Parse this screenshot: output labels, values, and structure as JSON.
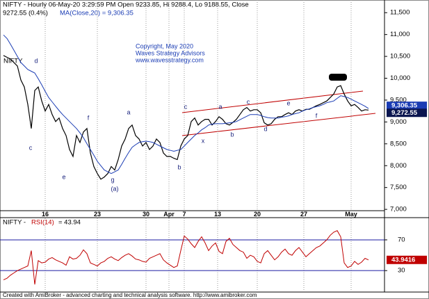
{
  "header": "NIFTY - Hourly 06-May-20 3:29:59 PM Open 9233.85, Hi 9288.4, Lo 9188.55, Close",
  "header_close": "9272.55 (0.4%)",
  "footer": "Created with AmiBroker - advanced charting and technical analysis software. http://www.amibroker.com",
  "chart_data": [
    {
      "type": "line",
      "xlim": [
        -1,
        109.6
      ],
      "xticks": [
        {
          "value": 12,
          "label": "16"
        },
        {
          "value": 27,
          "label": "23"
        },
        {
          "value": 41,
          "label": "30"
        },
        {
          "value": 47.6,
          "label": "Apr"
        },
        {
          "value": 52,
          "label": "7"
        },
        {
          "value": 61.6,
          "label": "13"
        },
        {
          "value": 73,
          "label": "20"
        },
        {
          "value": 86.4,
          "label": "27"
        },
        {
          "value": 100,
          "label": "May"
        }
      ],
      "ylim": [
        6970,
        11790
      ],
      "yticks": [
        {
          "value": 7000,
          "label": "7,000"
        },
        {
          "value": 7500,
          "label": "7,500"
        },
        {
          "value": 8000,
          "label": "8,000"
        },
        {
          "value": 8500,
          "label": "8,500"
        },
        {
          "value": 9000,
          "label": "9,000"
        },
        {
          "value": 9500,
          "label": "9,500"
        },
        {
          "value": 10000,
          "label": "10,000"
        },
        {
          "value": 10500,
          "label": "10,500"
        },
        {
          "value": 11000,
          "label": "11,000"
        },
        {
          "value": 11500,
          "label": "11,500"
        }
      ],
      "grid": true,
      "series": [
        {
          "name": "NIFTY",
          "color": "#000000",
          "values": [
            10520,
            10480,
            10440,
            10360,
            10280,
            9960,
            9800,
            9400,
            8850,
            9720,
            9800,
            9480,
            9250,
            9400,
            9170,
            9010,
            9090,
            8850,
            8690,
            8370,
            8210,
            8690,
            8530,
            8770,
            8850,
            8290,
            7980,
            7820,
            7690,
            7740,
            7820,
            7980,
            7900,
            8140,
            8450,
            8610,
            8850,
            8930,
            8690,
            8610,
            8450,
            8530,
            8370,
            8450,
            8610,
            8530,
            8290,
            8210,
            8210,
            8170,
            8140,
            8450,
            8610,
            8690,
            9010,
            9090,
            8930,
            9010,
            9060,
            9060,
            8930,
            9010,
            9120,
            9060,
            8960,
            8930,
            8990,
            9060,
            9170,
            9280,
            9330,
            9250,
            9280,
            9280,
            9210,
            8980,
            8930,
            8960,
            9060,
            9120,
            9120,
            9170,
            9210,
            9170,
            9250,
            9280,
            9250,
            9290,
            9290,
            9330,
            9370,
            9400,
            9440,
            9480,
            9560,
            9640,
            9800,
            9830,
            9640,
            9480,
            9370,
            9400,
            9330,
            9250,
            9280,
            9272.55
          ]
        },
        {
          "name": "MA(Close,20) = 9,306.35",
          "color": "#1a3cb4",
          "values": [
            10990,
            10910,
            10780,
            10640,
            10500,
            10360,
            10280,
            10200,
            10160,
            10120,
            9990,
            9850,
            9700,
            9560,
            9460,
            9360,
            9260,
            9170,
            9090,
            9010,
            8930,
            8850,
            8750,
            8640,
            8500,
            8370,
            8240,
            8100,
            8000,
            7900,
            7860,
            7820,
            7860,
            7900,
            8030,
            8170,
            8300,
            8420,
            8480,
            8530,
            8550,
            8560,
            8550,
            8530,
            8490,
            8450,
            8410,
            8370,
            8350,
            8330,
            8350,
            8370,
            8450,
            8530,
            8610,
            8690,
            8750,
            8820,
            8870,
            8930,
            8950,
            8960,
            8960,
            8960,
            8970,
            8980,
            8990,
            9010,
            9050,
            9090,
            9130,
            9170,
            9170,
            9170,
            9150,
            9120,
            9100,
            9090,
            9090,
            9090,
            9110,
            9120,
            9140,
            9170,
            9190,
            9210,
            9250,
            9280,
            9300,
            9330,
            9350,
            9370,
            9400,
            9440,
            9460,
            9480,
            9540,
            9600,
            9580,
            9560,
            9520,
            9480,
            9440,
            9400,
            9360,
            9306.35
          ]
        }
      ],
      "last_value_labels": [
        {
          "value": 9306.35,
          "label": "9,306.35",
          "color": "#1a3cb4"
        },
        {
          "value": 9272.55,
          "label": "9,272.55",
          "color": "#0b1650"
        }
      ],
      "annotations": [
        "d",
        "c",
        "e",
        "f",
        "g",
        "(a)",
        "a",
        "b",
        "c",
        "x",
        "a",
        "b",
        "c",
        "d",
        "e",
        "f"
      ],
      "copyright": [
        "Copyright, May 2020",
        "Waves Strategy Advisors",
        "www.wavesstrategy.com"
      ]
    },
    {
      "type": "line",
      "header_prefix": "NIFTY -",
      "header_suffix": "= 43.94",
      "ylim": [
        3,
        98
      ],
      "yticks": [
        30,
        70
      ],
      "series": [
        {
          "name": "RSI(14)",
          "color": "#c00000",
          "values": [
            18,
            20,
            24,
            27,
            30,
            32,
            34,
            36,
            56,
            12,
            43,
            40,
            41,
            45,
            47,
            44,
            42,
            40,
            37,
            48,
            45,
            46,
            50,
            57,
            52,
            40,
            38,
            36,
            40,
            42,
            46,
            48,
            45,
            43,
            47,
            50,
            52,
            49,
            45,
            44,
            42,
            41,
            46,
            48,
            50,
            52,
            44,
            40,
            37,
            34,
            36,
            56,
            75,
            71,
            65,
            60,
            68,
            74,
            66,
            56,
            62,
            66,
            55,
            52,
            68,
            72,
            64,
            60,
            56,
            54,
            46,
            50,
            48,
            42,
            40,
            52,
            56,
            50,
            44,
            48,
            54,
            58,
            52,
            50,
            56,
            60,
            54,
            48,
            52,
            56,
            60,
            62,
            66,
            70,
            76,
            80,
            82,
            74,
            40,
            34,
            36,
            42,
            38,
            41,
            46,
            43.94
          ]
        }
      ],
      "last_value": 43.9416
    }
  ]
}
